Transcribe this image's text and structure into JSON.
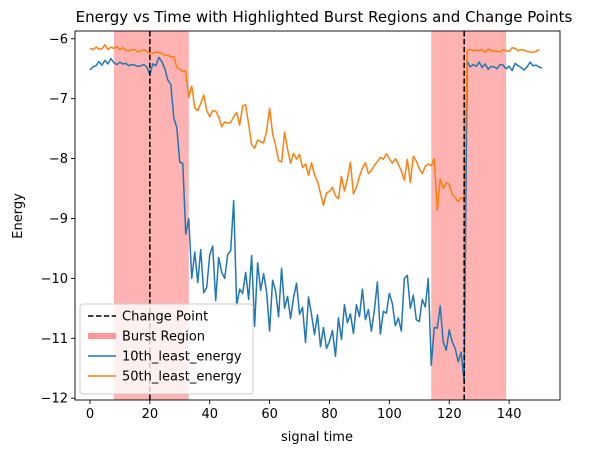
{
  "chart_data": {
    "type": "line",
    "title": "Energy vs Time with Highlighted Burst Regions and Change Points",
    "xlabel": "signal time",
    "ylabel": "Energy",
    "xlim": [
      -5,
      157
    ],
    "ylim": [
      -12.03,
      -5.87
    ],
    "xticks": [
      0,
      20,
      40,
      60,
      80,
      100,
      120,
      140
    ],
    "yticks": [
      -12,
      -11,
      -10,
      -9,
      -8,
      -7,
      -6
    ],
    "xtick_labels": [
      "0",
      "20",
      "40",
      "60",
      "80",
      "100",
      "120",
      "140"
    ],
    "ytick_labels": [
      "−12",
      "−11",
      "−10",
      "−9",
      "−8",
      "−7",
      "−6"
    ],
    "grid": false,
    "legend_position": "lower-left",
    "burst_regions": [
      [
        8,
        33
      ],
      [
        114,
        139
      ]
    ],
    "change_points": [
      20,
      125
    ],
    "legend": [
      {
        "label": "Change Point",
        "kind": "dashed",
        "color": "#000000"
      },
      {
        "label": "Burst Region",
        "kind": "band",
        "color": "#ff9999"
      },
      {
        "label": "10th_least_energy",
        "kind": "line",
        "color": "#1f77b4"
      },
      {
        "label": "50th_least_energy",
        "kind": "line",
        "color": "#ff7f0e"
      }
    ],
    "series": [
      {
        "name": "10th_least_energy",
        "color": "#1f77b4",
        "values": [
          -6.52,
          -6.47,
          -6.45,
          -6.38,
          -6.44,
          -6.36,
          -6.42,
          -6.33,
          -6.4,
          -6.43,
          -6.39,
          -6.42,
          -6.41,
          -6.45,
          -6.43,
          -6.44,
          -6.46,
          -6.45,
          -6.43,
          -6.47,
          -6.6,
          -6.42,
          -6.45,
          -6.31,
          -6.38,
          -6.5,
          -6.69,
          -6.76,
          -7.32,
          -7.48,
          -8.06,
          -8.08,
          -9.26,
          -9.0,
          -10.0,
          -9.56,
          -10.07,
          -9.52,
          -10.24,
          -10.15,
          -9.61,
          -9.46,
          -10.37,
          -9.65,
          -9.9,
          -10.0,
          -9.6,
          -9.54,
          -8.7,
          -10.45,
          -10.18,
          -10.25,
          -9.9,
          -10.35,
          -9.62,
          -10.8,
          -9.74,
          -10.2,
          -9.92,
          -10.23,
          -10.88,
          -10.03,
          -10.21,
          -10.64,
          -9.83,
          -10.5,
          -10.3,
          -10.67,
          -10.32,
          -10.08,
          -10.6,
          -10.48,
          -11.07,
          -10.31,
          -10.6,
          -10.94,
          -10.61,
          -11.14,
          -10.82,
          -11.17,
          -11.05,
          -10.87,
          -11.3,
          -10.66,
          -11.02,
          -10.44,
          -10.74,
          -10.59,
          -10.92,
          -10.44,
          -10.64,
          -10.18,
          -10.69,
          -10.52,
          -10.88,
          -10.53,
          -10.06,
          -10.93,
          -10.55,
          -10.58,
          -10.25,
          -10.42,
          -10.79,
          -10.66,
          -10.88,
          -10.0,
          -9.95,
          -10.5,
          -10.28,
          -10.69,
          -10.72,
          -10.35,
          -10.48,
          -10.0,
          -11.45,
          -10.82,
          -10.83,
          -10.46,
          -11.06,
          -11.2,
          -10.86,
          -11.06,
          -11.17,
          -11.39,
          -11.23,
          -11.74,
          -6.37,
          -6.47,
          -6.43,
          -6.46,
          -6.39,
          -6.48,
          -6.42,
          -6.51,
          -6.46,
          -6.47,
          -6.5,
          -6.43,
          -6.44,
          -6.5,
          -6.46,
          -6.53,
          -6.41,
          -6.45,
          -6.48,
          -6.52,
          -6.47,
          -6.39,
          -6.45,
          -6.44,
          -6.47,
          -6.49
        ]
      },
      {
        "name": "50th_least_energy",
        "color": "#ff7f0e",
        "values": [
          -6.16,
          -6.18,
          -6.14,
          -6.17,
          -6.17,
          -6.1,
          -6.18,
          -6.14,
          -6.16,
          -6.13,
          -6.18,
          -6.15,
          -6.19,
          -6.2,
          -6.18,
          -6.18,
          -6.22,
          -6.2,
          -6.19,
          -6.2,
          -6.25,
          -6.24,
          -6.22,
          -6.23,
          -6.24,
          -6.28,
          -6.27,
          -6.3,
          -6.3,
          -6.47,
          -6.51,
          -6.54,
          -6.54,
          -6.98,
          -6.79,
          -7.15,
          -7.2,
          -7.08,
          -6.94,
          -7.2,
          -7.3,
          -7.2,
          -7.21,
          -7.3,
          -7.47,
          -7.39,
          -7.41,
          -7.4,
          -7.3,
          -7.23,
          -7.44,
          -7.12,
          -7.1,
          -7.43,
          -7.77,
          -7.83,
          -7.69,
          -7.72,
          -7.74,
          -7.54,
          -7.16,
          -7.58,
          -7.78,
          -8.03,
          -8.06,
          -7.56,
          -7.84,
          -8.08,
          -7.91,
          -8.01,
          -7.93,
          -8.15,
          -8.09,
          -8.28,
          -8.07,
          -8.27,
          -8.38,
          -8.58,
          -8.78,
          -8.57,
          -8.55,
          -8.48,
          -8.62,
          -8.67,
          -8.3,
          -8.54,
          -8.34,
          -8.06,
          -8.59,
          -8.48,
          -8.3,
          -8.16,
          -8.07,
          -8.25,
          -8.2,
          -8.11,
          -8.05,
          -7.98,
          -8.01,
          -7.92,
          -8.0,
          -8.08,
          -8.0,
          -8.09,
          -8.21,
          -8.36,
          -8.01,
          -8.4,
          -7.96,
          -8.04,
          -8.17,
          -8.25,
          -8.13,
          -8.09,
          -8.12,
          -8.0,
          -8.86,
          -8.34,
          -8.5,
          -8.4,
          -8.43,
          -8.6,
          -8.65,
          -8.72,
          -8.65,
          -8.68,
          -6.19,
          -6.18,
          -6.2,
          -6.19,
          -6.2,
          -6.18,
          -6.23,
          -6.17,
          -6.2,
          -6.2,
          -6.21,
          -6.22,
          -6.18,
          -6.2,
          -6.21,
          -6.15,
          -6.16,
          -6.2,
          -6.18,
          -6.19,
          -6.21,
          -6.22,
          -6.23,
          -6.21,
          -6.18
        ]
      }
    ]
  }
}
